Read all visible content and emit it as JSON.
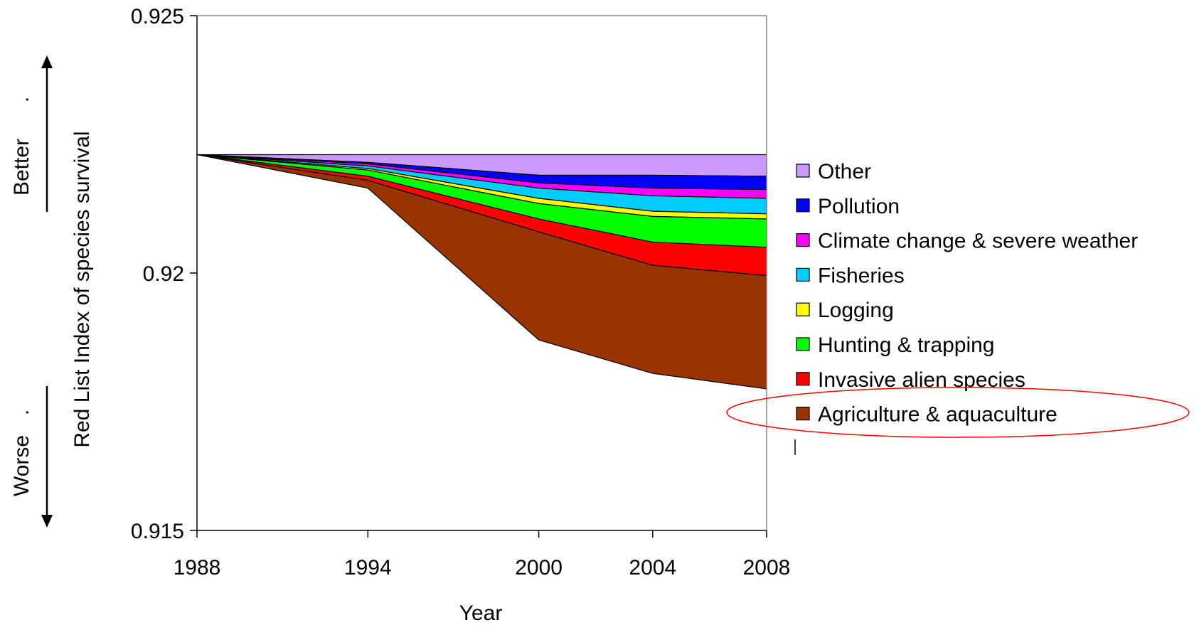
{
  "chart_data": {
    "type": "area",
    "stacking": "cumulative-loss",
    "x": [
      1988,
      1994,
      2000,
      2004,
      2008
    ],
    "xlabel": "Year",
    "ylabel": "Red List Index of species survival",
    "ylim": [
      0.915,
      0.925
    ],
    "yticks": [
      "0.925",
      "0.92",
      "0.915"
    ],
    "ytick_values": [
      0.925,
      0.92,
      0.915
    ],
    "xticks": [
      "1988",
      "1994",
      "2000",
      "2004",
      "2008"
    ],
    "baseline": 0.9223,
    "grid": false,
    "legend_position": "right",
    "better_label": "Better",
    "better_dot": ".",
    "worse_label": "Worse",
    "worse_dot": ".",
    "series": [
      {
        "name": "Other",
        "color": "#cc99ff",
        "lower": [
          0.9223,
          0.92215,
          0.9219,
          0.9219,
          0.92188
        ]
      },
      {
        "name": "Pollution",
        "color": "#0000ff",
        "lower": [
          0.9223,
          0.92212,
          0.92175,
          0.92165,
          0.92162
        ]
      },
      {
        "name": "Climate change & severe weather",
        "color": "#ff00ff",
        "lower": [
          0.9223,
          0.92208,
          0.92165,
          0.9215,
          0.92145
        ]
      },
      {
        "name": "Fisheries",
        "color": "#00ccff",
        "lower": [
          0.9223,
          0.92203,
          0.92145,
          0.9212,
          0.92115
        ]
      },
      {
        "name": "Logging",
        "color": "#ffff00",
        "lower": [
          0.9223,
          0.922,
          0.92135,
          0.9211,
          0.92105
        ]
      },
      {
        "name": "Hunting & trapping",
        "color": "#00ff00",
        "lower": [
          0.9223,
          0.92188,
          0.92105,
          0.9206,
          0.9205
        ]
      },
      {
        "name": "Invasive alien species",
        "color": "#ff0000",
        "lower": [
          0.9223,
          0.9218,
          0.9208,
          0.92015,
          0.91995
        ]
      },
      {
        "name": "Agriculture & aquaculture",
        "color": "#993300",
        "lower": [
          0.9223,
          0.92165,
          0.9187,
          0.91805,
          0.91775
        ]
      }
    ],
    "highlighted_series": "Agriculture & aquaculture"
  }
}
